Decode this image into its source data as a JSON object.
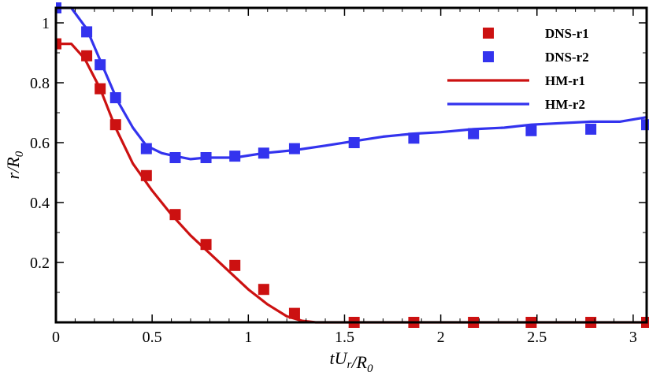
{
  "chart_data": {
    "type": "line",
    "title": "",
    "xlabel": "tU_r/R_0",
    "ylabel": "r/R_0",
    "xlim": [
      0,
      3.07
    ],
    "ylim": [
      0,
      1.05
    ],
    "x_ticks": [
      0,
      0.5,
      1,
      1.5,
      2,
      2.5,
      3
    ],
    "x_tick_labels": [
      "0",
      "0.5",
      "1",
      "1.5",
      "2",
      "2.5",
      "3"
    ],
    "y_ticks": [
      0.2,
      0.4,
      0.6,
      0.8,
      1
    ],
    "y_tick_labels": [
      "0.2",
      "0.4",
      "0.6",
      "0.8",
      "1"
    ],
    "grid": false,
    "legend_position": "top-right",
    "colors": {
      "red": "#cc1111",
      "blue": "#3333ee",
      "axis": "#000000"
    },
    "series": [
      {
        "name": "DNS-r1",
        "kind": "marker",
        "color": "#cc1111",
        "x": [
          0.0,
          0.16,
          0.23,
          0.31,
          0.47,
          0.62,
          0.78,
          0.93,
          1.08,
          1.24,
          1.55,
          1.86,
          2.17,
          2.47,
          2.78,
          3.07
        ],
        "y": [
          0.93,
          0.89,
          0.78,
          0.66,
          0.49,
          0.36,
          0.26,
          0.19,
          0.11,
          0.03,
          0.0,
          0.0,
          0.0,
          0.0,
          0.0,
          0.0
        ]
      },
      {
        "name": "DNS-r2",
        "kind": "marker",
        "color": "#3333ee",
        "x": [
          0.0,
          0.16,
          0.23,
          0.31,
          0.47,
          0.62,
          0.78,
          0.93,
          1.08,
          1.24,
          1.55,
          1.86,
          2.17,
          2.47,
          2.78,
          3.07
        ],
        "y": [
          1.05,
          0.97,
          0.86,
          0.75,
          0.58,
          0.55,
          0.55,
          0.555,
          0.565,
          0.58,
          0.6,
          0.615,
          0.63,
          0.64,
          0.645,
          0.66
        ]
      },
      {
        "name": "HM-r1",
        "kind": "line",
        "color": "#cc1111",
        "x": [
          0.0,
          0.08,
          0.15,
          0.23,
          0.31,
          0.4,
          0.5,
          0.6,
          0.7,
          0.8,
          0.9,
          1.0,
          1.1,
          1.2,
          1.28,
          1.35,
          1.5,
          2.0,
          2.5,
          3.07
        ],
        "y": [
          0.93,
          0.93,
          0.88,
          0.78,
          0.65,
          0.53,
          0.44,
          0.36,
          0.29,
          0.23,
          0.17,
          0.11,
          0.06,
          0.02,
          0.005,
          0.0,
          0.0,
          0.0,
          0.0,
          0.0
        ]
      },
      {
        "name": "HM-r2",
        "kind": "line",
        "color": "#3333ee",
        "x": [
          0.0,
          0.08,
          0.16,
          0.24,
          0.32,
          0.4,
          0.47,
          0.55,
          0.62,
          0.7,
          0.78,
          0.93,
          1.08,
          1.24,
          1.4,
          1.55,
          1.7,
          1.86,
          2.0,
          2.17,
          2.33,
          2.47,
          2.62,
          2.78,
          2.93,
          3.07
        ],
        "y": [
          1.05,
          1.05,
          0.98,
          0.86,
          0.74,
          0.65,
          0.59,
          0.565,
          0.555,
          0.545,
          0.55,
          0.55,
          0.565,
          0.575,
          0.59,
          0.605,
          0.62,
          0.63,
          0.635,
          0.645,
          0.65,
          0.66,
          0.665,
          0.67,
          0.67,
          0.685
        ]
      }
    ]
  }
}
